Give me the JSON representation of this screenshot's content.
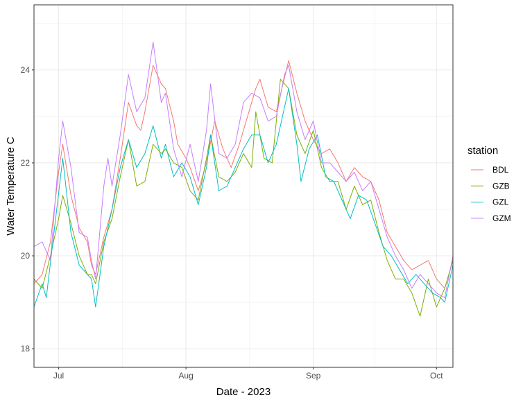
{
  "chart_data": {
    "type": "line",
    "xlabel": "Date - 2023",
    "ylabel": "Water Temperature C",
    "xlim": [
      "2023-06-25",
      "2023-10-05"
    ],
    "ylim": [
      17.6,
      25.4
    ],
    "x_ticks": [
      {
        "date": "2023-07-01",
        "label": "Jul"
      },
      {
        "date": "2023-08-01",
        "label": "Aug"
      },
      {
        "date": "2023-09-01",
        "label": "Sep"
      },
      {
        "date": "2023-10-01",
        "label": "Oct"
      }
    ],
    "y_ticks": [
      18,
      20,
      22,
      24
    ],
    "grid": true,
    "legend": {
      "title": "station",
      "position": "right"
    },
    "series": [
      {
        "name": "BDL",
        "color": "#F8766D",
        "points": [
          [
            "2023-06-25",
            19.4
          ],
          [
            "2023-06-27",
            19.6
          ],
          [
            "2023-06-29",
            20.3
          ],
          [
            "2023-07-01",
            21.8
          ],
          [
            "2023-07-02",
            22.4
          ],
          [
            "2023-07-04",
            21.3
          ],
          [
            "2023-07-06",
            20.6
          ],
          [
            "2023-07-08",
            20.3
          ],
          [
            "2023-07-09",
            19.8
          ],
          [
            "2023-07-10",
            19.6
          ],
          [
            "2023-07-12",
            20.4
          ],
          [
            "2023-07-14",
            21.0
          ],
          [
            "2023-07-16",
            22.1
          ],
          [
            "2023-07-18",
            23.3
          ],
          [
            "2023-07-20",
            22.8
          ],
          [
            "2023-07-21",
            22.7
          ],
          [
            "2023-07-22",
            23.1
          ],
          [
            "2023-07-24",
            24.1
          ],
          [
            "2023-07-26",
            23.7
          ],
          [
            "2023-07-27",
            23.6
          ],
          [
            "2023-07-29",
            22.9
          ],
          [
            "2023-07-30",
            22.4
          ],
          [
            "2023-08-01",
            22.1
          ],
          [
            "2023-08-02",
            21.9
          ],
          [
            "2023-08-04",
            21.4
          ],
          [
            "2023-08-06",
            22.0
          ],
          [
            "2023-08-08",
            22.9
          ],
          [
            "2023-08-10",
            22.3
          ],
          [
            "2023-08-12",
            21.9
          ],
          [
            "2023-08-14",
            22.4
          ],
          [
            "2023-08-16",
            23.0
          ],
          [
            "2023-08-18",
            23.6
          ],
          [
            "2023-08-19",
            23.8
          ],
          [
            "2023-08-21",
            23.2
          ],
          [
            "2023-08-23",
            23.1
          ],
          [
            "2023-08-26",
            24.2
          ],
          [
            "2023-08-28",
            23.5
          ],
          [
            "2023-08-30",
            22.9
          ],
          [
            "2023-09-01",
            22.5
          ],
          [
            "2023-09-03",
            22.2
          ],
          [
            "2023-09-05",
            22.3
          ],
          [
            "2023-09-07",
            22.0
          ],
          [
            "2023-09-09",
            21.6
          ],
          [
            "2023-09-11",
            21.9
          ],
          [
            "2023-09-13",
            21.7
          ],
          [
            "2023-09-15",
            21.6
          ],
          [
            "2023-09-17",
            21.2
          ],
          [
            "2023-09-19",
            20.5
          ],
          [
            "2023-09-21",
            20.2
          ],
          [
            "2023-09-23",
            19.9
          ],
          [
            "2023-09-25",
            19.7
          ],
          [
            "2023-09-27",
            19.8
          ],
          [
            "2023-09-29",
            19.9
          ],
          [
            "2023-10-01",
            19.5
          ],
          [
            "2023-10-03",
            19.3
          ],
          [
            "2023-10-05",
            19.9
          ]
        ]
      },
      {
        "name": "GZB",
        "color": "#7CAE00",
        "points": [
          [
            "2023-06-25",
            19.5
          ],
          [
            "2023-06-27",
            19.3
          ],
          [
            "2023-06-29",
            20.0
          ],
          [
            "2023-07-01",
            20.8
          ],
          [
            "2023-07-02",
            21.3
          ],
          [
            "2023-07-04",
            20.7
          ],
          [
            "2023-07-06",
            20.0
          ],
          [
            "2023-07-08",
            19.6
          ],
          [
            "2023-07-09",
            19.6
          ],
          [
            "2023-07-10",
            19.4
          ],
          [
            "2023-07-12",
            20.3
          ],
          [
            "2023-07-14",
            20.8
          ],
          [
            "2023-07-16",
            21.7
          ],
          [
            "2023-07-18",
            22.5
          ],
          [
            "2023-07-20",
            21.5
          ],
          [
            "2023-07-22",
            21.6
          ],
          [
            "2023-07-24",
            22.4
          ],
          [
            "2023-07-26",
            22.2
          ],
          [
            "2023-07-27",
            22.3
          ],
          [
            "2023-07-29",
            22.0
          ],
          [
            "2023-07-31",
            21.9
          ],
          [
            "2023-08-02",
            21.4
          ],
          [
            "2023-08-04",
            21.2
          ],
          [
            "2023-08-06",
            22.1
          ],
          [
            "2023-08-07",
            22.6
          ],
          [
            "2023-08-09",
            21.7
          ],
          [
            "2023-08-11",
            21.6
          ],
          [
            "2023-08-13",
            21.8
          ],
          [
            "2023-08-15",
            22.2
          ],
          [
            "2023-08-17",
            21.9
          ],
          [
            "2023-08-18",
            23.1
          ],
          [
            "2023-08-20",
            22.1
          ],
          [
            "2023-08-22",
            22.0
          ],
          [
            "2023-08-24",
            23.8
          ],
          [
            "2023-08-26",
            23.6
          ],
          [
            "2023-08-28",
            22.6
          ],
          [
            "2023-08-30",
            22.2
          ],
          [
            "2023-09-01",
            22.7
          ],
          [
            "2023-09-03",
            21.9
          ],
          [
            "2023-09-05",
            21.6
          ],
          [
            "2023-09-07",
            21.6
          ],
          [
            "2023-09-09",
            21.0
          ],
          [
            "2023-09-11",
            21.5
          ],
          [
            "2023-09-13",
            21.1
          ],
          [
            "2023-09-15",
            21.2
          ],
          [
            "2023-09-17",
            20.5
          ],
          [
            "2023-09-19",
            19.9
          ],
          [
            "2023-09-21",
            19.5
          ],
          [
            "2023-09-23",
            19.5
          ],
          [
            "2023-09-25",
            19.2
          ],
          [
            "2023-09-27",
            18.7
          ],
          [
            "2023-09-29",
            19.5
          ],
          [
            "2023-10-01",
            18.9
          ],
          [
            "2023-10-03",
            19.3
          ],
          [
            "2023-10-05",
            19.9
          ]
        ]
      },
      {
        "name": "GZL",
        "color": "#00BFC4",
        "points": [
          [
            "2023-06-25",
            18.9
          ],
          [
            "2023-06-27",
            19.4
          ],
          [
            "2023-06-28",
            19.1
          ],
          [
            "2023-06-30",
            20.6
          ],
          [
            "2023-07-02",
            22.1
          ],
          [
            "2023-07-04",
            20.5
          ],
          [
            "2023-07-06",
            19.8
          ],
          [
            "2023-07-08",
            19.6
          ],
          [
            "2023-07-09",
            19.5
          ],
          [
            "2023-07-10",
            18.9
          ],
          [
            "2023-07-12",
            20.2
          ],
          [
            "2023-07-14",
            21.0
          ],
          [
            "2023-07-16",
            21.9
          ],
          [
            "2023-07-18",
            22.5
          ],
          [
            "2023-07-20",
            21.9
          ],
          [
            "2023-07-22",
            22.2
          ],
          [
            "2023-07-24",
            22.8
          ],
          [
            "2023-07-26",
            22.1
          ],
          [
            "2023-07-27",
            22.4
          ],
          [
            "2023-07-29",
            21.7
          ],
          [
            "2023-07-31",
            22.0
          ],
          [
            "2023-08-02",
            21.7
          ],
          [
            "2023-08-04",
            21.1
          ],
          [
            "2023-08-06",
            21.9
          ],
          [
            "2023-08-07",
            22.6
          ],
          [
            "2023-08-09",
            21.4
          ],
          [
            "2023-08-11",
            21.5
          ],
          [
            "2023-08-13",
            21.9
          ],
          [
            "2023-08-15",
            22.3
          ],
          [
            "2023-08-17",
            22.6
          ],
          [
            "2023-08-19",
            22.6
          ],
          [
            "2023-08-21",
            22.0
          ],
          [
            "2023-08-23",
            22.4
          ],
          [
            "2023-08-25",
            23.2
          ],
          [
            "2023-08-26",
            23.6
          ],
          [
            "2023-08-28",
            22.4
          ],
          [
            "2023-08-29",
            21.6
          ],
          [
            "2023-08-31",
            22.3
          ],
          [
            "2023-09-02",
            22.6
          ],
          [
            "2023-09-04",
            21.7
          ],
          [
            "2023-09-06",
            21.6
          ],
          [
            "2023-09-08",
            21.2
          ],
          [
            "2023-09-10",
            20.8
          ],
          [
            "2023-09-12",
            21.3
          ],
          [
            "2023-09-14",
            21.2
          ],
          [
            "2023-09-16",
            20.7
          ],
          [
            "2023-09-18",
            20.2
          ],
          [
            "2023-09-20",
            20.0
          ],
          [
            "2023-09-22",
            19.7
          ],
          [
            "2023-09-24",
            19.4
          ],
          [
            "2023-09-26",
            19.6
          ],
          [
            "2023-09-28",
            19.4
          ],
          [
            "2023-09-30",
            19.2
          ],
          [
            "2023-10-02",
            19.1
          ],
          [
            "2023-10-03",
            19.0
          ],
          [
            "2023-10-05",
            19.8
          ]
        ]
      },
      {
        "name": "GZM",
        "color": "#C77CFF",
        "points": [
          [
            "2023-06-25",
            20.2
          ],
          [
            "2023-06-27",
            20.3
          ],
          [
            "2023-06-29",
            19.9
          ],
          [
            "2023-07-01",
            22.1
          ],
          [
            "2023-07-02",
            22.9
          ],
          [
            "2023-07-04",
            21.9
          ],
          [
            "2023-07-06",
            20.5
          ],
          [
            "2023-07-08",
            20.4
          ],
          [
            "2023-07-09",
            19.9
          ],
          [
            "2023-07-10",
            19.5
          ],
          [
            "2023-07-12",
            21.5
          ],
          [
            "2023-07-13",
            22.1
          ],
          [
            "2023-07-14",
            21.5
          ],
          [
            "2023-07-16",
            22.6
          ],
          [
            "2023-07-18",
            23.9
          ],
          [
            "2023-07-20",
            23.1
          ],
          [
            "2023-07-22",
            23.4
          ],
          [
            "2023-07-24",
            24.6
          ],
          [
            "2023-07-26",
            23.3
          ],
          [
            "2023-07-27",
            23.5
          ],
          [
            "2023-07-29",
            22.3
          ],
          [
            "2023-07-31",
            21.7
          ],
          [
            "2023-08-02",
            22.4
          ],
          [
            "2023-08-04",
            21.6
          ],
          [
            "2023-08-06",
            22.7
          ],
          [
            "2023-08-07",
            23.7
          ],
          [
            "2023-08-09",
            22.2
          ],
          [
            "2023-08-11",
            22.1
          ],
          [
            "2023-08-13",
            22.4
          ],
          [
            "2023-08-15",
            23.3
          ],
          [
            "2023-08-17",
            23.5
          ],
          [
            "2023-08-19",
            23.4
          ],
          [
            "2023-08-21",
            22.9
          ],
          [
            "2023-08-23",
            23.0
          ],
          [
            "2023-08-25",
            23.9
          ],
          [
            "2023-08-26",
            24.1
          ],
          [
            "2023-08-28",
            23.1
          ],
          [
            "2023-08-30",
            22.5
          ],
          [
            "2023-09-01",
            22.9
          ],
          [
            "2023-09-03",
            22.0
          ],
          [
            "2023-09-05",
            22.0
          ],
          [
            "2023-09-07",
            21.8
          ],
          [
            "2023-09-09",
            21.6
          ],
          [
            "2023-09-11",
            21.8
          ],
          [
            "2023-09-13",
            21.4
          ],
          [
            "2023-09-15",
            21.6
          ],
          [
            "2023-09-17",
            21.0
          ],
          [
            "2023-09-19",
            20.4
          ],
          [
            "2023-09-21",
            20.0
          ],
          [
            "2023-09-23",
            19.7
          ],
          [
            "2023-09-25",
            19.3
          ],
          [
            "2023-09-27",
            19.6
          ],
          [
            "2023-09-29",
            19.4
          ],
          [
            "2023-10-01",
            19.2
          ],
          [
            "2023-10-03",
            19.1
          ],
          [
            "2023-10-05",
            20.0
          ]
        ]
      }
    ]
  }
}
